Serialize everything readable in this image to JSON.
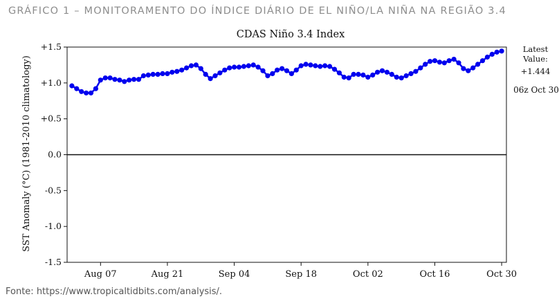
{
  "figure": {
    "caption": "GRÁFICO 1 – MONITORAMENTO DO ÍNDICE DIÁRIO DE EL NIÑO/LA NIÑA NA REGIÃO 3.4",
    "source": "Fonte: https://www.tropicaltidbits.com/analysis/."
  },
  "chart_data": {
    "type": "line",
    "title": "CDAS Niño 3.4 Index",
    "ylabel": "SST Anomaly (°C) (1981-2010 climatology)",
    "xlabel": "",
    "ylim": [
      -1.5,
      1.5
    ],
    "yticks": [
      1.5,
      1.0,
      0.5,
      0.0,
      -0.5,
      -1.0,
      -1.5
    ],
    "ytick_labels": [
      "+1.5",
      "+1.0",
      "+0.5",
      "0.0",
      "-0.5",
      "-1.0",
      "-1.5"
    ],
    "xlim": [
      "2023-07-31",
      "2023-10-31"
    ],
    "xticks": [
      "2023-08-07",
      "2023-08-21",
      "2023-09-04",
      "2023-09-18",
      "2023-10-02",
      "2023-10-16",
      "2023-10-30"
    ],
    "xtick_labels": [
      "Aug 07",
      "Aug 21",
      "Sep 04",
      "Sep 18",
      "Oct 02",
      "Oct 16",
      "Oct 30"
    ],
    "zero_line": true,
    "grid": false,
    "latest": {
      "label": "Latest\nValue:",
      "value": "+1.444",
      "time": "06z Oct 30"
    },
    "series": [
      {
        "color": "#0000ee",
        "x": [
          "2023-08-01",
          "2023-08-02",
          "2023-08-03",
          "2023-08-04",
          "2023-08-05",
          "2023-08-06",
          "2023-08-07",
          "2023-08-08",
          "2023-08-09",
          "2023-08-10",
          "2023-08-11",
          "2023-08-12",
          "2023-08-13",
          "2023-08-14",
          "2023-08-15",
          "2023-08-16",
          "2023-08-17",
          "2023-08-18",
          "2023-08-19",
          "2023-08-20",
          "2023-08-21",
          "2023-08-22",
          "2023-08-23",
          "2023-08-24",
          "2023-08-25",
          "2023-08-26",
          "2023-08-27",
          "2023-08-28",
          "2023-08-29",
          "2023-08-30",
          "2023-08-31",
          "2023-09-01",
          "2023-09-02",
          "2023-09-03",
          "2023-09-04",
          "2023-09-05",
          "2023-09-06",
          "2023-09-07",
          "2023-09-08",
          "2023-09-09",
          "2023-09-10",
          "2023-09-11",
          "2023-09-12",
          "2023-09-13",
          "2023-09-14",
          "2023-09-15",
          "2023-09-16",
          "2023-09-17",
          "2023-09-18",
          "2023-09-19",
          "2023-09-20",
          "2023-09-21",
          "2023-09-22",
          "2023-09-23",
          "2023-09-24",
          "2023-09-25",
          "2023-09-26",
          "2023-09-27",
          "2023-09-28",
          "2023-09-29",
          "2023-09-30",
          "2023-10-01",
          "2023-10-02",
          "2023-10-03",
          "2023-10-04",
          "2023-10-05",
          "2023-10-06",
          "2023-10-07",
          "2023-10-08",
          "2023-10-09",
          "2023-10-10",
          "2023-10-11",
          "2023-10-12",
          "2023-10-13",
          "2023-10-14",
          "2023-10-15",
          "2023-10-16",
          "2023-10-17",
          "2023-10-18",
          "2023-10-19",
          "2023-10-20",
          "2023-10-21",
          "2023-10-22",
          "2023-10-23",
          "2023-10-24",
          "2023-10-25",
          "2023-10-26",
          "2023-10-27",
          "2023-10-28",
          "2023-10-29",
          "2023-10-30"
        ],
        "values": [
          0.96,
          0.92,
          0.88,
          0.86,
          0.86,
          0.92,
          1.04,
          1.07,
          1.07,
          1.05,
          1.04,
          1.02,
          1.04,
          1.05,
          1.05,
          1.1,
          1.11,
          1.12,
          1.12,
          1.13,
          1.13,
          1.15,
          1.16,
          1.18,
          1.21,
          1.24,
          1.25,
          1.2,
          1.12,
          1.06,
          1.1,
          1.14,
          1.18,
          1.21,
          1.22,
          1.22,
          1.23,
          1.24,
          1.25,
          1.22,
          1.17,
          1.1,
          1.13,
          1.18,
          1.2,
          1.17,
          1.13,
          1.18,
          1.24,
          1.26,
          1.25,
          1.24,
          1.23,
          1.24,
          1.23,
          1.19,
          1.14,
          1.08,
          1.07,
          1.12,
          1.12,
          1.11,
          1.08,
          1.11,
          1.15,
          1.17,
          1.15,
          1.12,
          1.08,
          1.07,
          1.1,
          1.13,
          1.16,
          1.21,
          1.26,
          1.3,
          1.31,
          1.29,
          1.28,
          1.31,
          1.33,
          1.28,
          1.2,
          1.17,
          1.21,
          1.26,
          1.31,
          1.36,
          1.4,
          1.43,
          1.444
        ]
      }
    ]
  }
}
